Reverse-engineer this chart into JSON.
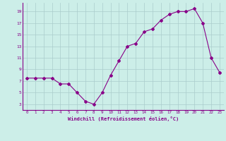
{
  "x": [
    0,
    1,
    2,
    3,
    4,
    5,
    6,
    7,
    8,
    9,
    10,
    11,
    12,
    13,
    14,
    15,
    16,
    17,
    18,
    19,
    20,
    21,
    22,
    23
  ],
  "y": [
    7.5,
    7.5,
    7.5,
    7.5,
    6.5,
    6.5,
    5.0,
    3.5,
    3.0,
    5.0,
    8.0,
    10.5,
    13.0,
    13.5,
    15.5,
    16.0,
    17.5,
    18.5,
    19.0,
    19.0,
    19.5,
    17.0,
    11.0,
    8.5
  ],
  "line_color": "#880088",
  "marker": "D",
  "marker_size": 2.0,
  "bg_color": "#cceee8",
  "grid_color": "#aacccc",
  "xlabel": "Windchill (Refroidissement éolien,°C)",
  "xlabel_color": "#880088",
  "yticks": [
    3,
    5,
    7,
    9,
    11,
    13,
    15,
    17,
    19
  ],
  "xticks": [
    0,
    1,
    2,
    3,
    4,
    5,
    6,
    7,
    8,
    9,
    10,
    11,
    12,
    13,
    14,
    15,
    16,
    17,
    18,
    19,
    20,
    21,
    22,
    23
  ],
  "ylim": [
    2.0,
    20.5
  ],
  "xlim": [
    -0.5,
    23.5
  ]
}
